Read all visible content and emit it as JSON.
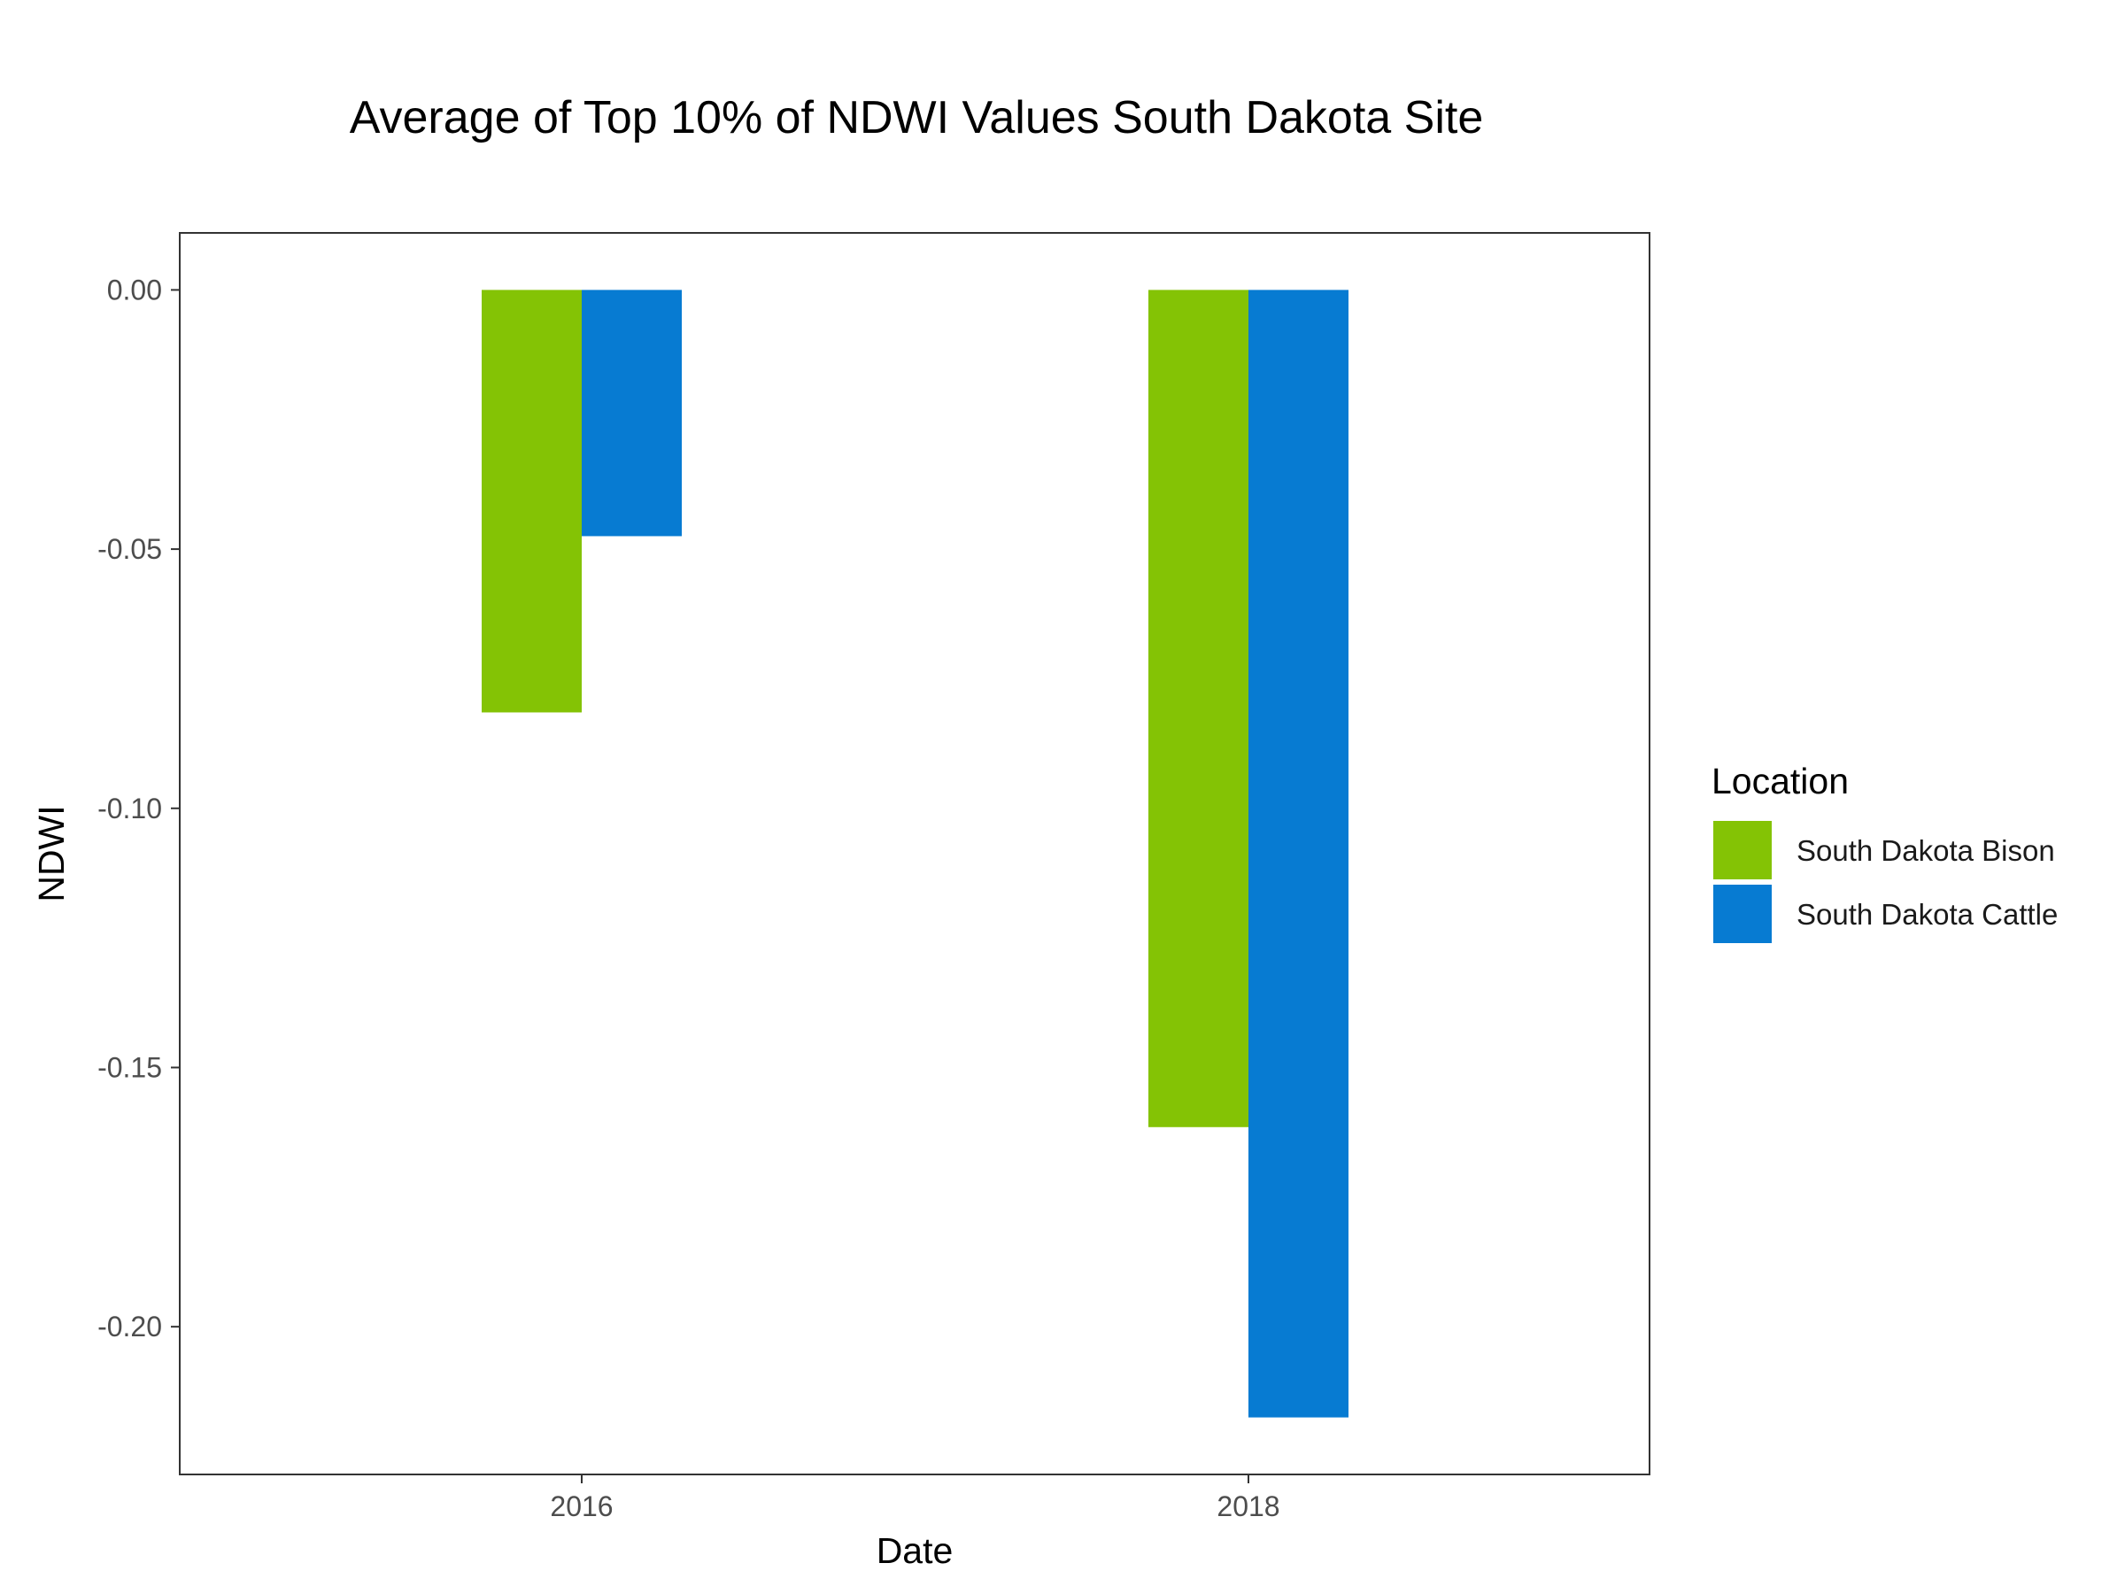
{
  "chart_data": {
    "type": "bar",
    "title": "Average of Top 10% of NDWI Values South Dakota Site",
    "xlabel": "Date",
    "ylabel": "NDWI",
    "categories": [
      "2016",
      "2018"
    ],
    "series": [
      {
        "name": "South Dakota Bison",
        "color": "#84c305",
        "values": [
          -0.0815,
          -0.1615
        ]
      },
      {
        "name": "South Dakota Cattle",
        "color": "#077bd2",
        "values": [
          -0.0475,
          -0.2175
        ]
      }
    ],
    "ylim": [
      -0.2285,
      0.011
    ],
    "yticks": [
      0.0,
      -0.05,
      -0.1,
      -0.15,
      -0.2
    ],
    "ytick_labels": [
      "0.00",
      "-0.05",
      "-0.10",
      "-0.15",
      "-0.20"
    ],
    "grid": false,
    "legend": {
      "title": "Location",
      "position": "right"
    }
  }
}
